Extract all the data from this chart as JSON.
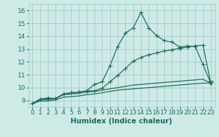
{
  "xlabel": "Humidex (Indice chaleur)",
  "xlim": [
    -0.5,
    23.5
  ],
  "ylim": [
    8.5,
    16.5
  ],
  "yticks": [
    9,
    10,
    11,
    12,
    13,
    14,
    15,
    16
  ],
  "xticks": [
    0,
    1,
    2,
    3,
    4,
    5,
    6,
    7,
    8,
    9,
    10,
    11,
    12,
    13,
    14,
    15,
    16,
    17,
    18,
    19,
    20,
    21,
    22,
    23
  ],
  "background_color": "#ceeae4",
  "grid_color": "#a0ccc6",
  "line_color": "#1a6b5a",
  "curve1": [
    8.75,
    9.1,
    9.2,
    9.15,
    9.5,
    9.6,
    9.65,
    9.75,
    10.25,
    10.45,
    11.7,
    13.2,
    14.25,
    14.65,
    15.85,
    14.65,
    14.05,
    13.65,
    13.55,
    13.15,
    13.25,
    13.2,
    11.8,
    10.35
  ],
  "curve2": [
    8.75,
    9.1,
    9.15,
    9.15,
    9.5,
    9.6,
    9.65,
    9.75,
    9.75,
    9.95,
    10.45,
    10.95,
    11.5,
    12.05,
    12.35,
    12.55,
    12.7,
    12.85,
    12.95,
    13.05,
    13.15,
    13.25,
    13.3,
    10.35
  ],
  "curve3": [
    8.75,
    9.05,
    9.05,
    9.15,
    9.45,
    9.5,
    9.55,
    9.65,
    9.7,
    9.8,
    9.9,
    10.0,
    10.1,
    10.2,
    10.25,
    10.3,
    10.35,
    10.4,
    10.45,
    10.5,
    10.55,
    10.6,
    10.65,
    10.35
  ],
  "curve4": [
    8.75,
    8.95,
    8.95,
    9.05,
    9.25,
    9.3,
    9.35,
    9.45,
    9.5,
    9.6,
    9.7,
    9.8,
    9.85,
    9.9,
    9.95,
    10.0,
    10.05,
    10.1,
    10.15,
    10.2,
    10.25,
    10.3,
    10.35,
    10.35
  ],
  "marker_size": 2.5,
  "linewidth": 0.9
}
